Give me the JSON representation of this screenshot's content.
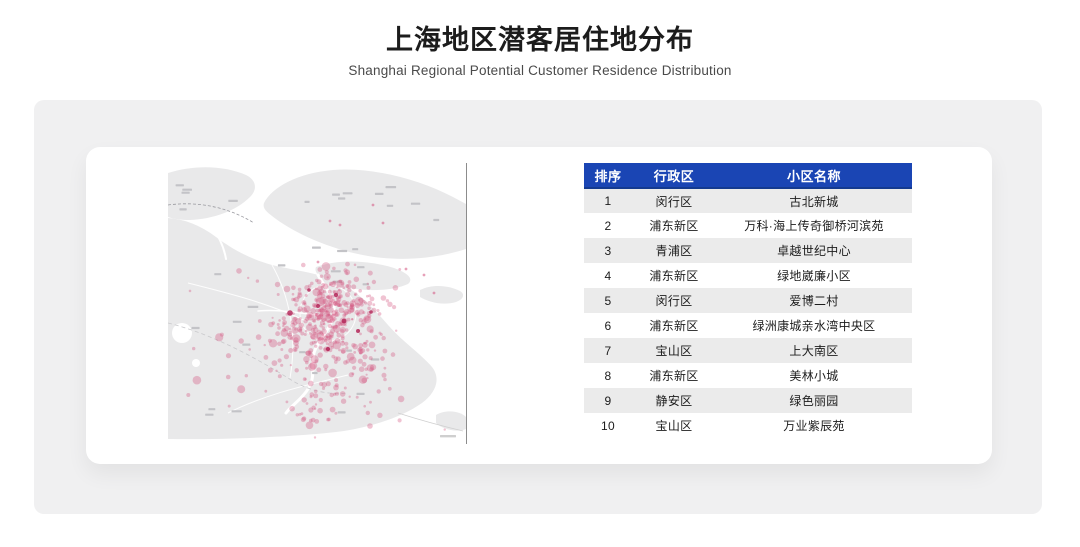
{
  "title": "上海地区潜客居住地分布",
  "subtitle": "Shanghai Regional Potential Customer Residence Distribution",
  "table": {
    "columns": [
      "排序",
      "行政区",
      "小区名称"
    ],
    "rows": [
      [
        "1",
        "闵行区",
        "古北新城"
      ],
      [
        "2",
        "浦东新区",
        "万科·海上传奇御桥河滨苑"
      ],
      [
        "3",
        "青浦区",
        "卓越世纪中心"
      ],
      [
        "4",
        "浦东新区",
        "绿地崴廉小区"
      ],
      [
        "5",
        "闵行区",
        "爱博二村"
      ],
      [
        "6",
        "浦东新区",
        "绿洲康城亲水湾中央区"
      ],
      [
        "7",
        "宝山区",
        "上大南区"
      ],
      [
        "8",
        "浦东新区",
        "美林小城"
      ],
      [
        "9",
        "静安区",
        "绿色丽园"
      ],
      [
        "10",
        "宝山区",
        "万业紫辰苑"
      ]
    ],
    "header_bg": "#1a45b4",
    "zebra_bg": "#ebebeb"
  },
  "map": {
    "description": "shanghai-dot-density-map",
    "land_color": "#e9e9ea",
    "water_color": "#ffffff",
    "dot_color": "#d4537f",
    "dot_dark_color": "#b01e52",
    "label_color": "#c3c3c7",
    "border_color": "#8c8c8c"
  }
}
